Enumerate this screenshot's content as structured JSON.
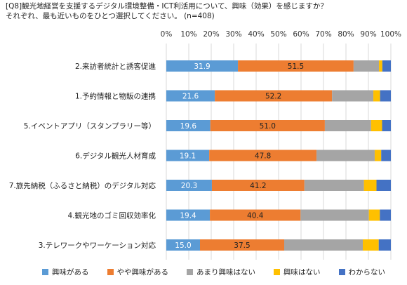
{
  "title": {
    "line1": "[Q8]観光地経営を支援するデジタル環境整備・ICT利活用について、興味（効果）を感じますか？",
    "line2": "それぞれ、最も近いものをひとつ選択してください。 (n=408)"
  },
  "chart_data": {
    "type": "bar",
    "orientation": "horizontal",
    "stacked": true,
    "xlim": [
      0,
      100
    ],
    "xticks": [
      "0%",
      "10%",
      "20%",
      "30%",
      "40%",
      "50%",
      "60%",
      "70%",
      "80%",
      "90%",
      "100%"
    ],
    "xtick_axis_position": "top",
    "grid": true,
    "legend_position": "bottom",
    "categories": [
      "2.来訪者統計と誘客促進",
      "1.予約情報と物販の連携",
      "5.イベントアプリ（スタンプラリー等）",
      "6.デジタル観光人材育成",
      "7.旅先納税（ふるさと納税）のデジタル対応",
      "4.観光地のゴミ回収効率化",
      "3.テレワークやワーケーション対応"
    ],
    "series": [
      {
        "name": "興味がある",
        "color": "#5b9bd5",
        "values": [
          31.9,
          21.6,
          19.6,
          19.1,
          20.3,
          19.4,
          15.0
        ]
      },
      {
        "name": "やや興味がある",
        "color": "#ed7d31",
        "values": [
          51.5,
          52.2,
          51.0,
          47.8,
          41.2,
          40.4,
          37.5
        ]
      },
      {
        "name": "あまり興味はない",
        "color": "#a5a5a5",
        "values": [
          11.3,
          18.4,
          20.6,
          25.9,
          26.5,
          30.4,
          35.0
        ]
      },
      {
        "name": "興味はない",
        "color": "#ffc000",
        "values": [
          1.5,
          3.0,
          4.9,
          2.9,
          5.6,
          4.9,
          7.1
        ]
      },
      {
        "name": "わからない",
        "color": "#4472c4",
        "values": [
          3.8,
          4.8,
          3.9,
          4.3,
          6.4,
          4.9,
          5.4
        ]
      }
    ],
    "data_labels": {
      "興味がある": [
        "31.9",
        "21.6",
        "19.6",
        "19.1",
        "20.3",
        "19.4",
        "15.0"
      ],
      "やや興味がある": [
        "51.5",
        "52.2",
        "51.0",
        "47.8",
        "41.2",
        "40.4",
        "37.5"
      ]
    }
  }
}
